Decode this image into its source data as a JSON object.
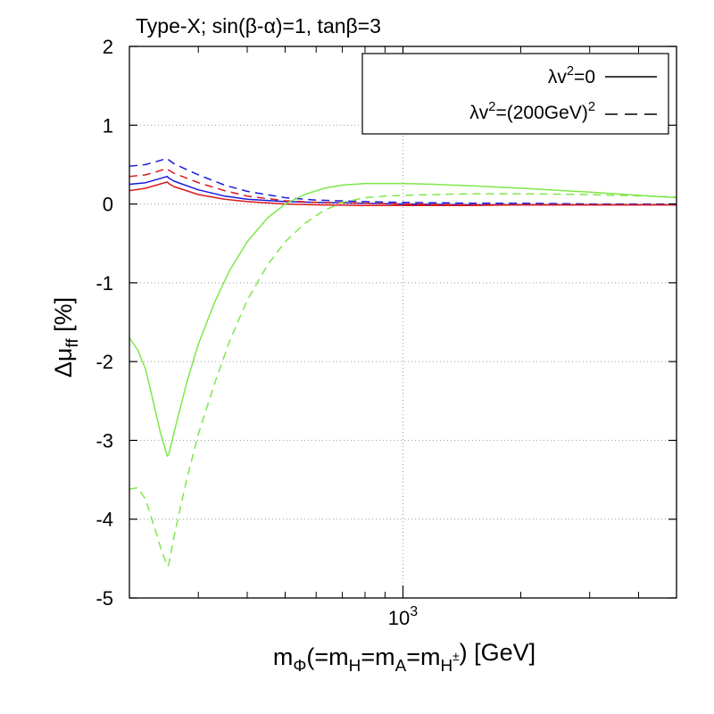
{
  "chart_data": {
    "type": "line",
    "title": "Type-X; sin(β-α)=1, tanβ=3",
    "xlabel": "mΦ(=mH=mA=mH±) [GeV]",
    "ylabel": "Δμff [%]",
    "xscale": "log",
    "xlim": [
      200,
      5000
    ],
    "ylim": [
      -5,
      2
    ],
    "yticks": [
      -5,
      -4,
      -3,
      -2,
      -1,
      0,
      1,
      2
    ],
    "ytick_labels": [
      "-5",
      "-4",
      "-3",
      "-2",
      "-1",
      "0",
      "1",
      "2"
    ],
    "xtick_major": 1000,
    "xtick_major_label": "10^3",
    "grid": true,
    "legend": {
      "position": "top-right",
      "entries": [
        {
          "label": "λv^2=0",
          "style": "solid"
        },
        {
          "label": "λv^2=(200GeV)^2",
          "style": "dashed"
        }
      ]
    },
    "colors": {
      "blue": "#1a1adb",
      "red": "#d91a1a",
      "green": "#7ee84a",
      "grid": "#9a9a9a"
    },
    "series": [
      {
        "name": "blue (λv²=0)",
        "color": "blue",
        "style": "solid",
        "x": [
          200,
          220,
          250,
          252,
          260,
          300,
          350,
          400,
          500,
          600,
          800,
          1000,
          1500,
          2000,
          3000,
          5000
        ],
        "y": [
          0.25,
          0.27,
          0.35,
          0.33,
          0.29,
          0.18,
          0.1,
          0.06,
          0.03,
          0.02,
          0.01,
          0.0,
          -0.01,
          -0.01,
          -0.01,
          -0.01
        ]
      },
      {
        "name": "blue (λv²=(200GeV)²)",
        "color": "blue",
        "style": "dashed",
        "x": [
          200,
          220,
          250,
          252,
          260,
          300,
          350,
          400,
          500,
          600,
          800,
          1000,
          1500,
          2000,
          3000,
          5000
        ],
        "y": [
          0.48,
          0.5,
          0.58,
          0.56,
          0.51,
          0.37,
          0.24,
          0.16,
          0.08,
          0.05,
          0.03,
          0.02,
          0.01,
          0.01,
          0.0,
          0.0
        ]
      },
      {
        "name": "red (λv²=0)",
        "color": "red",
        "style": "solid",
        "x": [
          200,
          220,
          250,
          252,
          260,
          300,
          350,
          400,
          500,
          600,
          800,
          1000,
          1500,
          2000,
          3000,
          5000
        ],
        "y": [
          0.17,
          0.2,
          0.28,
          0.26,
          0.22,
          0.12,
          0.06,
          0.03,
          0.0,
          -0.01,
          -0.02,
          -0.02,
          -0.02,
          -0.01,
          -0.01,
          -0.01
        ]
      },
      {
        "name": "red (λv²=(200GeV)²)",
        "color": "red",
        "style": "dashed",
        "x": [
          200,
          220,
          250,
          252,
          260,
          300,
          350,
          400,
          500,
          600,
          800,
          1000,
          1500,
          2000,
          3000,
          5000
        ],
        "y": [
          0.35,
          0.37,
          0.45,
          0.43,
          0.39,
          0.27,
          0.17,
          0.1,
          0.04,
          0.02,
          0.01,
          0.0,
          -0.01,
          -0.01,
          -0.01,
          -0.01
        ]
      },
      {
        "name": "green (λv²=0)",
        "color": "green",
        "style": "solid",
        "x": [
          200,
          210,
          220,
          230,
          240,
          250,
          252,
          260,
          270,
          280,
          300,
          330,
          360,
          400,
          450,
          500,
          560,
          630,
          700,
          800,
          900,
          1000,
          1200,
          1500,
          2000,
          3000,
          5000
        ],
        "y": [
          -1.7,
          -1.85,
          -2.1,
          -2.5,
          -2.9,
          -3.2,
          -3.18,
          -2.9,
          -2.58,
          -2.27,
          -1.78,
          -1.25,
          -0.85,
          -0.48,
          -0.18,
          0.0,
          0.12,
          0.2,
          0.24,
          0.26,
          0.26,
          0.26,
          0.25,
          0.23,
          0.2,
          0.15,
          0.08
        ]
      },
      {
        "name": "green (λv²=(200GeV)²)",
        "color": "green",
        "style": "dashed",
        "x": [
          200,
          210,
          220,
          230,
          240,
          250,
          252,
          260,
          270,
          280,
          300,
          330,
          360,
          400,
          450,
          500,
          560,
          630,
          700,
          800,
          900,
          1000,
          1200,
          1500,
          2000,
          3000,
          5000
        ],
        "y": [
          -3.62,
          -3.6,
          -3.75,
          -4.05,
          -4.35,
          -4.6,
          -4.58,
          -4.22,
          -3.85,
          -3.5,
          -2.92,
          -2.28,
          -1.75,
          -1.22,
          -0.78,
          -0.48,
          -0.25,
          -0.08,
          0.02,
          0.08,
          0.1,
          0.11,
          0.12,
          0.13,
          0.13,
          0.12,
          0.09
        ]
      }
    ]
  }
}
